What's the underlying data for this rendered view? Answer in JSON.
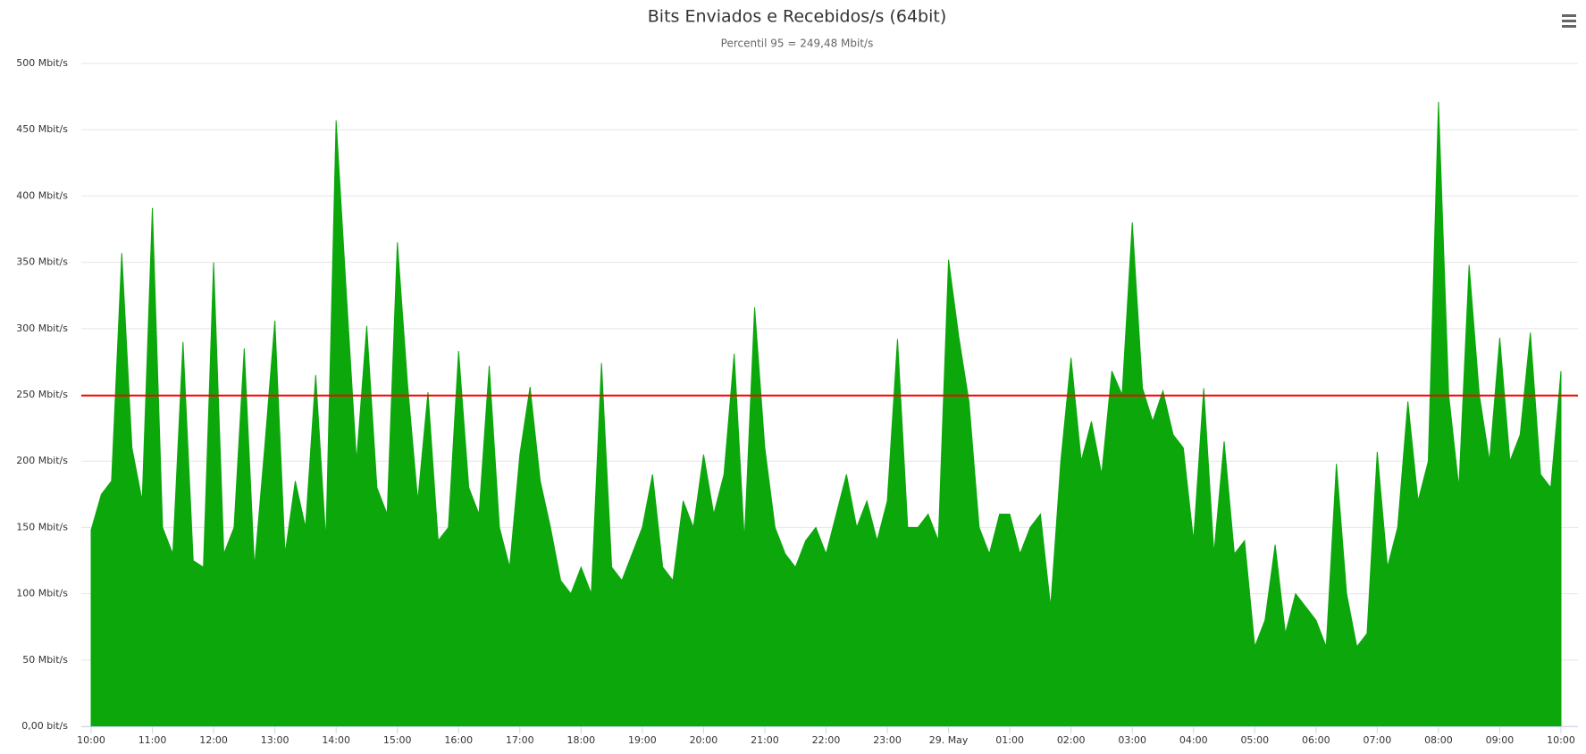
{
  "chart_data": {
    "type": "area",
    "title": "Bits Enviados e Recebidos/s (64bit)",
    "subtitle": "Percentil 95 = 249,48 Mbit/s",
    "categories": [
      "10:00",
      null,
      null,
      null,
      null,
      null,
      "11:00",
      null,
      null,
      null,
      null,
      null,
      "12:00",
      null,
      null,
      null,
      null,
      null,
      "13:00",
      null,
      null,
      null,
      null,
      null,
      "14:00",
      null,
      null,
      null,
      null,
      null,
      "15:00",
      null,
      null,
      null,
      null,
      null,
      "16:00",
      null,
      null,
      null,
      null,
      null,
      "17:00",
      null,
      null,
      null,
      null,
      null,
      "18:00",
      null,
      null,
      null,
      null,
      null,
      "19:00",
      null,
      null,
      null,
      null,
      null,
      "20:00",
      null,
      null,
      null,
      null,
      null,
      "21:00",
      null,
      null,
      null,
      null,
      null,
      "22:00",
      null,
      null,
      null,
      null,
      null,
      "23:00",
      null,
      null,
      null,
      null,
      null,
      "29. May",
      null,
      null,
      null,
      null,
      null,
      "01:00",
      null,
      null,
      null,
      null,
      null,
      "02:00",
      null,
      null,
      null,
      null,
      null,
      "03:00",
      null,
      null,
      null,
      null,
      null,
      "04:00",
      null,
      null,
      null,
      null,
      null,
      "05:00",
      null,
      null,
      null,
      null,
      null,
      "06:00",
      null,
      null,
      null,
      null,
      null,
      "07:00",
      null,
      null,
      null,
      null,
      null,
      "08:00",
      null,
      null,
      null,
      null,
      null,
      "09:00",
      null,
      null,
      null,
      null,
      null,
      "10:00"
    ],
    "series": [
      {
        "color": "#0ba70b",
        "values": [
          148,
          175,
          185,
          357,
          210,
          170,
          391,
          150,
          130,
          290,
          125,
          120,
          350,
          130,
          150,
          285,
          120,
          210,
          306,
          130,
          185,
          150,
          265,
          140,
          457,
          327,
          200,
          302,
          180,
          160,
          365,
          258,
          170,
          252,
          140,
          150,
          283,
          180,
          160,
          272,
          150,
          120,
          205,
          256,
          185,
          150,
          110,
          100,
          120,
          100,
          274,
          120,
          110,
          130,
          150,
          190,
          120,
          110,
          170,
          150,
          205,
          160,
          190,
          281,
          140,
          316,
          210,
          150,
          130,
          120,
          140,
          150,
          130,
          160,
          190,
          150,
          170,
          140,
          170,
          292,
          150,
          150,
          160,
          140,
          352,
          294,
          245,
          150,
          130,
          160,
          160,
          130,
          150,
          160,
          90,
          200,
          278,
          200,
          230,
          190,
          268,
          250,
          380,
          255,
          230,
          253,
          220,
          210,
          140,
          255,
          130,
          215,
          130,
          140,
          60,
          80,
          137,
          70,
          100,
          90,
          80,
          60,
          198,
          100,
          60,
          70,
          207,
          120,
          150,
          245,
          170,
          200,
          471,
          250,
          180,
          348,
          250,
          200,
          293,
          200,
          220,
          297,
          190,
          180,
          268
        ]
      }
    ],
    "plot_lines": [
      {
        "value": 249.48,
        "color": "#ff0000"
      }
    ],
    "ylim": [
      0,
      500
    ],
    "yticks": [
      {
        "value": 0,
        "label": "0,00 bit/s"
      },
      {
        "value": 50,
        "label": "50 Mbit/s"
      },
      {
        "value": 100,
        "label": "100 Mbit/s"
      },
      {
        "value": 150,
        "label": "150 Mbit/s"
      },
      {
        "value": 200,
        "label": "200 Mbit/s"
      },
      {
        "value": 250,
        "label": "250 Mbit/s"
      },
      {
        "value": 300,
        "label": "300 Mbit/s"
      },
      {
        "value": 350,
        "label": "350 Mbit/s"
      },
      {
        "value": 400,
        "label": "400 Mbit/s"
      },
      {
        "value": 450,
        "label": "450 Mbit/s"
      },
      {
        "value": 500,
        "label": "500 Mbit/s"
      }
    ],
    "grid": true
  }
}
